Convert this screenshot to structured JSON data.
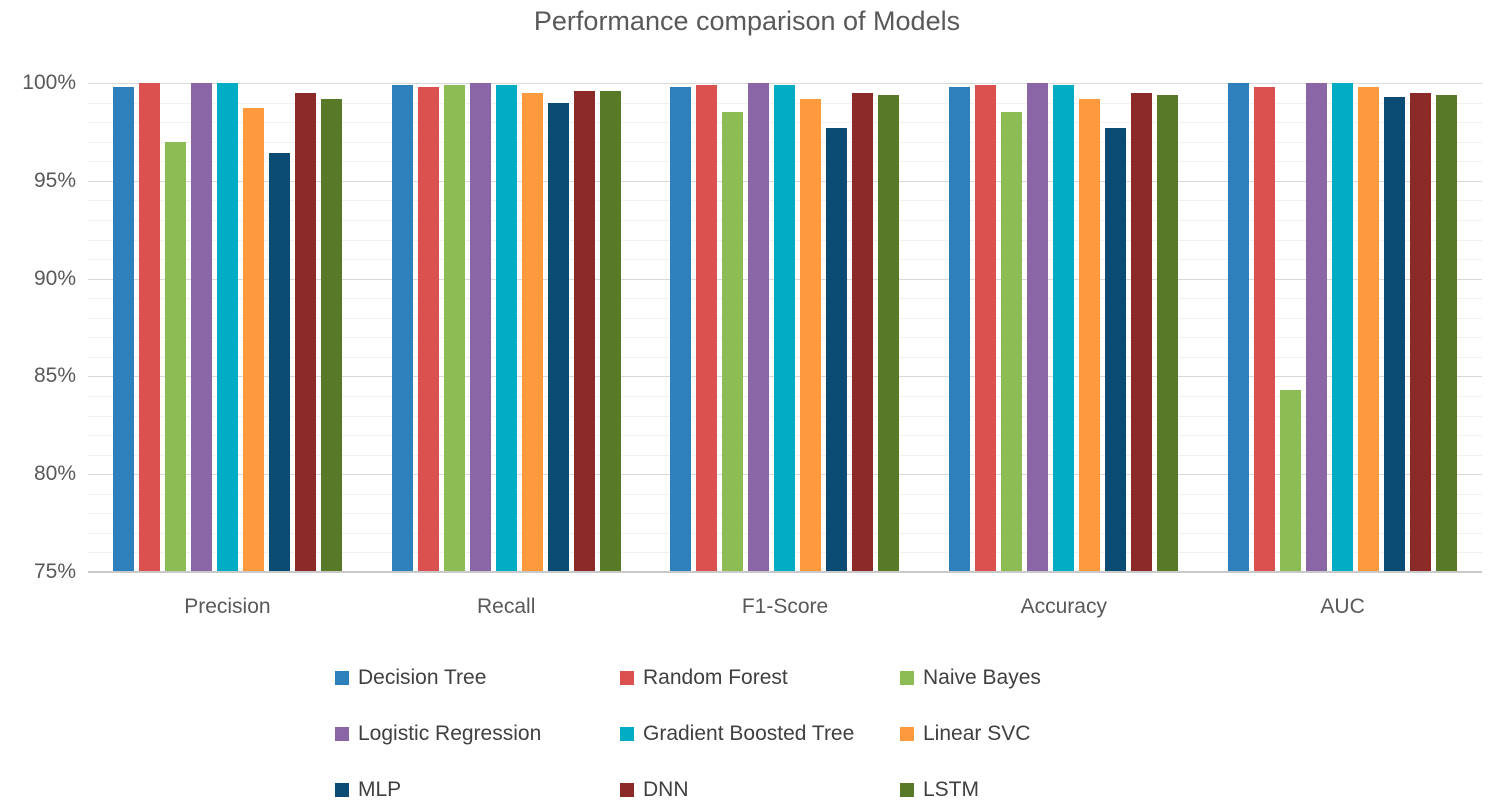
{
  "chart_data": {
    "type": "bar",
    "title": "Performance comparison of Models",
    "categories": [
      "Precision",
      "Recall",
      "F1-Score",
      "Accuracy",
      "AUC"
    ],
    "series": [
      {
        "name": "Decision Tree",
        "color": "#2E80BD",
        "values": [
          99.8,
          99.9,
          99.8,
          99.8,
          100.0
        ]
      },
      {
        "name": "Random Forest",
        "color": "#DB5150",
        "values": [
          100.0,
          99.8,
          99.9,
          99.9,
          99.8
        ]
      },
      {
        "name": "Naive Bayes",
        "color": "#8DBC55",
        "values": [
          97.0,
          99.9,
          98.5,
          98.5,
          84.3
        ]
      },
      {
        "name": "Logistic Regression",
        "color": "#8A66A7",
        "values": [
          100.0,
          100.0,
          100.0,
          100.0,
          100.0
        ]
      },
      {
        "name": "Gradient Boosted Tree",
        "color": "#00ADC4",
        "values": [
          100.0,
          99.9,
          99.9,
          99.9,
          100.0
        ]
      },
      {
        "name": "Linear SVC",
        "color": "#FD9A3E",
        "values": [
          98.7,
          99.5,
          99.2,
          99.2,
          99.8
        ]
      },
      {
        "name": "MLP",
        "color": "#0A4B73",
        "values": [
          96.4,
          99.0,
          97.7,
          97.7,
          99.3
        ]
      },
      {
        "name": "DNN",
        "color": "#8C2A27",
        "values": [
          99.5,
          99.6,
          99.5,
          99.5,
          99.5
        ]
      },
      {
        "name": "LSTM",
        "color": "#587A28",
        "values": [
          99.2,
          99.6,
          99.4,
          99.4,
          99.4
        ]
      }
    ],
    "ylim": [
      75,
      100
    ],
    "y_major_step": 5,
    "y_minor_step": 1,
    "y_tick_labels": [
      "75%",
      "80%",
      "85%",
      "90%",
      "95%",
      "100%"
    ],
    "grid": true,
    "legend_position": "bottom",
    "axis_text_color": "#595959",
    "legend_text_color": "#404040",
    "major_grid_color": "#d9d9d9",
    "minor_grid_color": "#f1f1f1"
  }
}
